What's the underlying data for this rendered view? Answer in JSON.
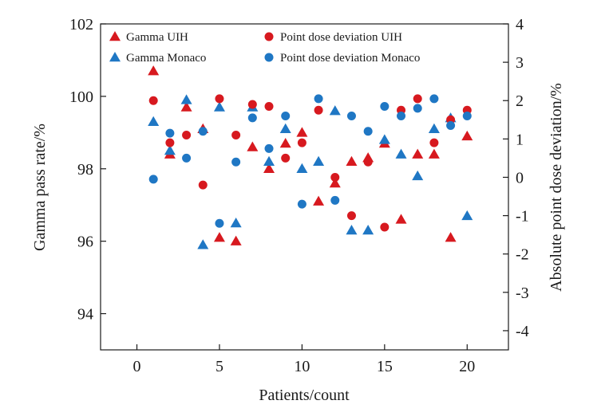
{
  "chart_data": {
    "type": "scatter",
    "xlabel": "Patients/count",
    "ylabel_left": "Gamma pass rate/%",
    "ylabel_right": "Absolute point dose deviation/%",
    "xlim": [
      -2.2,
      22.5
    ],
    "ylim_left": [
      93,
      102
    ],
    "ylim_right": [
      -4.5,
      4
    ],
    "xticks": [
      0,
      5,
      10,
      15,
      20
    ],
    "yticks_left": [
      94,
      96,
      98,
      100,
      102
    ],
    "yticks_right": [
      -4,
      -3,
      -2,
      -1,
      0,
      1,
      2,
      3,
      4
    ],
    "grid": false,
    "legend_position": "top, inside",
    "series": [
      {
        "name": "Gamma UIH",
        "axis": "left",
        "marker": "triangle",
        "color": "#d7191f",
        "x": [
          1,
          2,
          3,
          4,
          5,
          6,
          7,
          8,
          9,
          10,
          11,
          12,
          13,
          14,
          15,
          16,
          17,
          18,
          19,
          20
        ],
        "y": [
          100.7,
          98.4,
          99.7,
          99.1,
          96.1,
          96.0,
          98.6,
          98.0,
          98.7,
          99.0,
          97.1,
          97.6,
          98.2,
          98.3,
          98.7,
          96.6,
          98.4,
          98.4,
          96.1,
          98.9
        ]
      },
      {
        "name": "Gamma Monaco",
        "axis": "left",
        "marker": "triangle",
        "color": "#1f77c4",
        "x": [
          1,
          2,
          3,
          4,
          5,
          6,
          7,
          8,
          9,
          10,
          11,
          12,
          13,
          14,
          15,
          16,
          17,
          18,
          19,
          20
        ],
        "y": [
          99.3,
          98.5,
          99.9,
          95.9,
          99.7,
          96.5,
          99.7,
          98.2,
          99.1,
          98.0,
          98.2,
          99.6,
          96.3,
          96.3,
          98.8,
          98.4,
          97.8,
          99.1,
          99.4,
          96.7
        ]
      },
      {
        "name": "Point dose deviation UIH",
        "axis": "right",
        "marker": "circle",
        "color": "#d7191f",
        "x": [
          1,
          2,
          3,
          4,
          5,
          6,
          7,
          8,
          9,
          10,
          11,
          12,
          13,
          14,
          15,
          16,
          17,
          18,
          19,
          20
        ],
        "y": [
          2.0,
          0.9,
          1.1,
          -0.2,
          2.05,
          1.1,
          1.9,
          1.85,
          0.5,
          0.9,
          1.75,
          0.0,
          -1.0,
          0.4,
          -1.3,
          1.75,
          2.05,
          0.9,
          1.5,
          1.75
        ]
      },
      {
        "name": "Point dose deviation Monaco",
        "axis": "right",
        "marker": "circle",
        "color": "#1f77c4",
        "x": [
          1,
          2,
          3,
          4,
          5,
          6,
          7,
          8,
          9,
          10,
          11,
          12,
          13,
          14,
          15,
          16,
          17,
          18,
          19,
          20
        ],
        "y": [
          -0.05,
          1.15,
          0.5,
          1.2,
          -1.2,
          0.4,
          1.55,
          0.75,
          1.6,
          -0.7,
          2.05,
          -0.6,
          1.6,
          1.2,
          1.85,
          1.6,
          1.8,
          2.05,
          1.35,
          1.6
        ]
      }
    ]
  }
}
